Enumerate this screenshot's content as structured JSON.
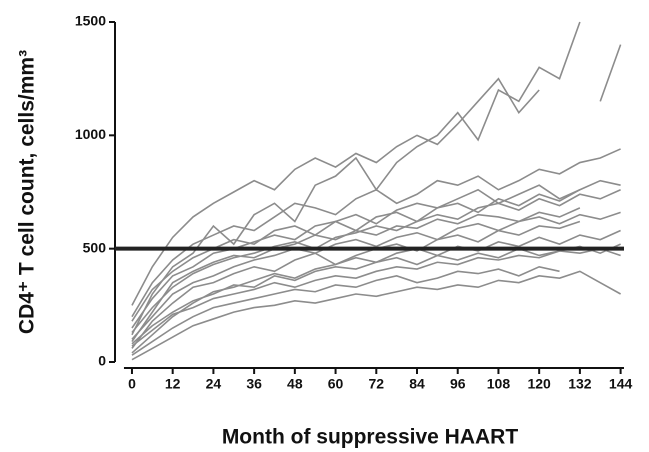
{
  "chart_data": {
    "type": "line",
    "x_label": "Month of suppressive HAART",
    "y_label": "CD4⁺ T cell count, cells/mm³",
    "x": [
      0,
      6,
      12,
      18,
      24,
      30,
      36,
      42,
      48,
      54,
      60,
      66,
      72,
      78,
      84,
      90,
      96,
      102,
      108,
      114,
      120,
      126,
      132,
      138,
      144
    ],
    "series": [
      {
        "color": "#8c8c8c",
        "values": [
          60,
          180,
          260,
          330,
          350,
          390,
          420,
          400,
          450,
          480,
          430,
          470,
          500,
          520,
          490,
          540,
          560,
          530,
          580,
          560,
          600,
          590,
          620,
          null,
          null
        ]
      },
      {
        "color": "#8c8c8c",
        "values": [
          120,
          300,
          420,
          480,
          600,
          520,
          650,
          700,
          620,
          780,
          820,
          900,
          760,
          880,
          950,
          1000,
          1100,
          980,
          1200,
          1150,
          1300,
          1250,
          1500,
          null,
          null
        ]
      },
      {
        "color": "#8c8c8c",
        "values": [
          30,
          90,
          150,
          200,
          240,
          260,
          280,
          300,
          320,
          310,
          340,
          330,
          360,
          380,
          350,
          370,
          400,
          390,
          410,
          380,
          420,
          400,
          null,
          null,
          null
        ]
      },
      {
        "color": "#8c8c8c",
        "values": [
          200,
          350,
          450,
          520,
          560,
          600,
          580,
          640,
          700,
          680,
          650,
          720,
          760,
          700,
          740,
          800,
          780,
          820,
          760,
          800,
          850,
          830,
          880,
          900,
          940
        ]
      },
      {
        "color": "#8c8c8c",
        "values": [
          80,
          160,
          220,
          270,
          300,
          340,
          330,
          380,
          360,
          400,
          420,
          410,
          440,
          460,
          430,
          470,
          450,
          480,
          460,
          500,
          470,
          490,
          510,
          480,
          520
        ]
      },
      {
        "color": "#8c8c8c",
        "values": [
          150,
          280,
          380,
          420,
          480,
          500,
          530,
          560,
          540,
          600,
          620,
          580,
          640,
          660,
          620,
          680,
          700,
          660,
          720,
          690,
          740,
          710,
          760,
          null,
          null
        ]
      },
      {
        "color": "#8c8c8c",
        "values": [
          10,
          60,
          110,
          160,
          190,
          220,
          240,
          250,
          270,
          260,
          280,
          300,
          290,
          310,
          330,
          320,
          340,
          330,
          360,
          350,
          380,
          370,
          400,
          350,
          300
        ]
      },
      {
        "color": "#8c8c8c",
        "values": [
          250,
          420,
          550,
          640,
          700,
          750,
          800,
          760,
          850,
          900,
          860,
          920,
          880,
          950,
          1000,
          960,
          1050,
          1150,
          1250,
          1100,
          1200,
          null,
          null,
          1150,
          1400
        ]
      },
      {
        "color": "#8c8c8c",
        "values": [
          100,
          200,
          300,
          350,
          380,
          420,
          450,
          470,
          500,
          480,
          520,
          540,
          510,
          550,
          570,
          540,
          590,
          610,
          580,
          620,
          640,
          610,
          650,
          630,
          660
        ]
      },
      {
        "color": "#8c8c8c",
        "values": [
          40,
          120,
          200,
          260,
          310,
          330,
          360,
          390,
          370,
          410,
          430,
          460,
          440,
          480,
          500,
          470,
          510,
          490,
          530,
          510,
          550,
          520,
          560,
          540,
          580
        ]
      },
      {
        "color": "#8c8c8c",
        "values": [
          180,
          320,
          400,
          460,
          500,
          540,
          520,
          580,
          600,
          560,
          620,
          650,
          610,
          670,
          700,
          680,
          720,
          760,
          700,
          740,
          780,
          720,
          760,
          800,
          780
        ]
      },
      {
        "color": "#8c8c8c",
        "values": [
          70,
          140,
          210,
          240,
          280,
          300,
          320,
          350,
          330,
          360,
          380,
          370,
          400,
          420,
          410,
          440,
          430,
          460,
          450,
          470,
          460,
          490,
          480,
          500,
          470
        ]
      },
      {
        "color": "#8c8c8c",
        "values": [
          130,
          240,
          330,
          390,
          430,
          460,
          480,
          510,
          530,
          500,
          550,
          570,
          600,
          580,
          620,
          650,
          630,
          680,
          700,
          670,
          720,
          690,
          740,
          720,
          760
        ]
      },
      {
        "color": "#8c8c8c",
        "values": [
          90,
          220,
          350,
          400,
          440,
          470,
          460,
          500,
          520,
          560,
          540,
          580,
          560,
          600,
          590,
          630,
          610,
          650,
          640,
          620,
          660,
          640,
          680,
          null,
          null
        ]
      }
    ],
    "reference_line": {
      "value": 500,
      "color": "#222222"
    },
    "xlim": [
      -5,
      145
    ],
    "xticks": [
      0,
      12,
      24,
      36,
      48,
      60,
      72,
      84,
      96,
      108,
      120,
      132,
      144
    ],
    "ylim": [
      0,
      1500
    ],
    "yticks": [
      0,
      500,
      1000,
      1500
    ],
    "grid": false
  }
}
